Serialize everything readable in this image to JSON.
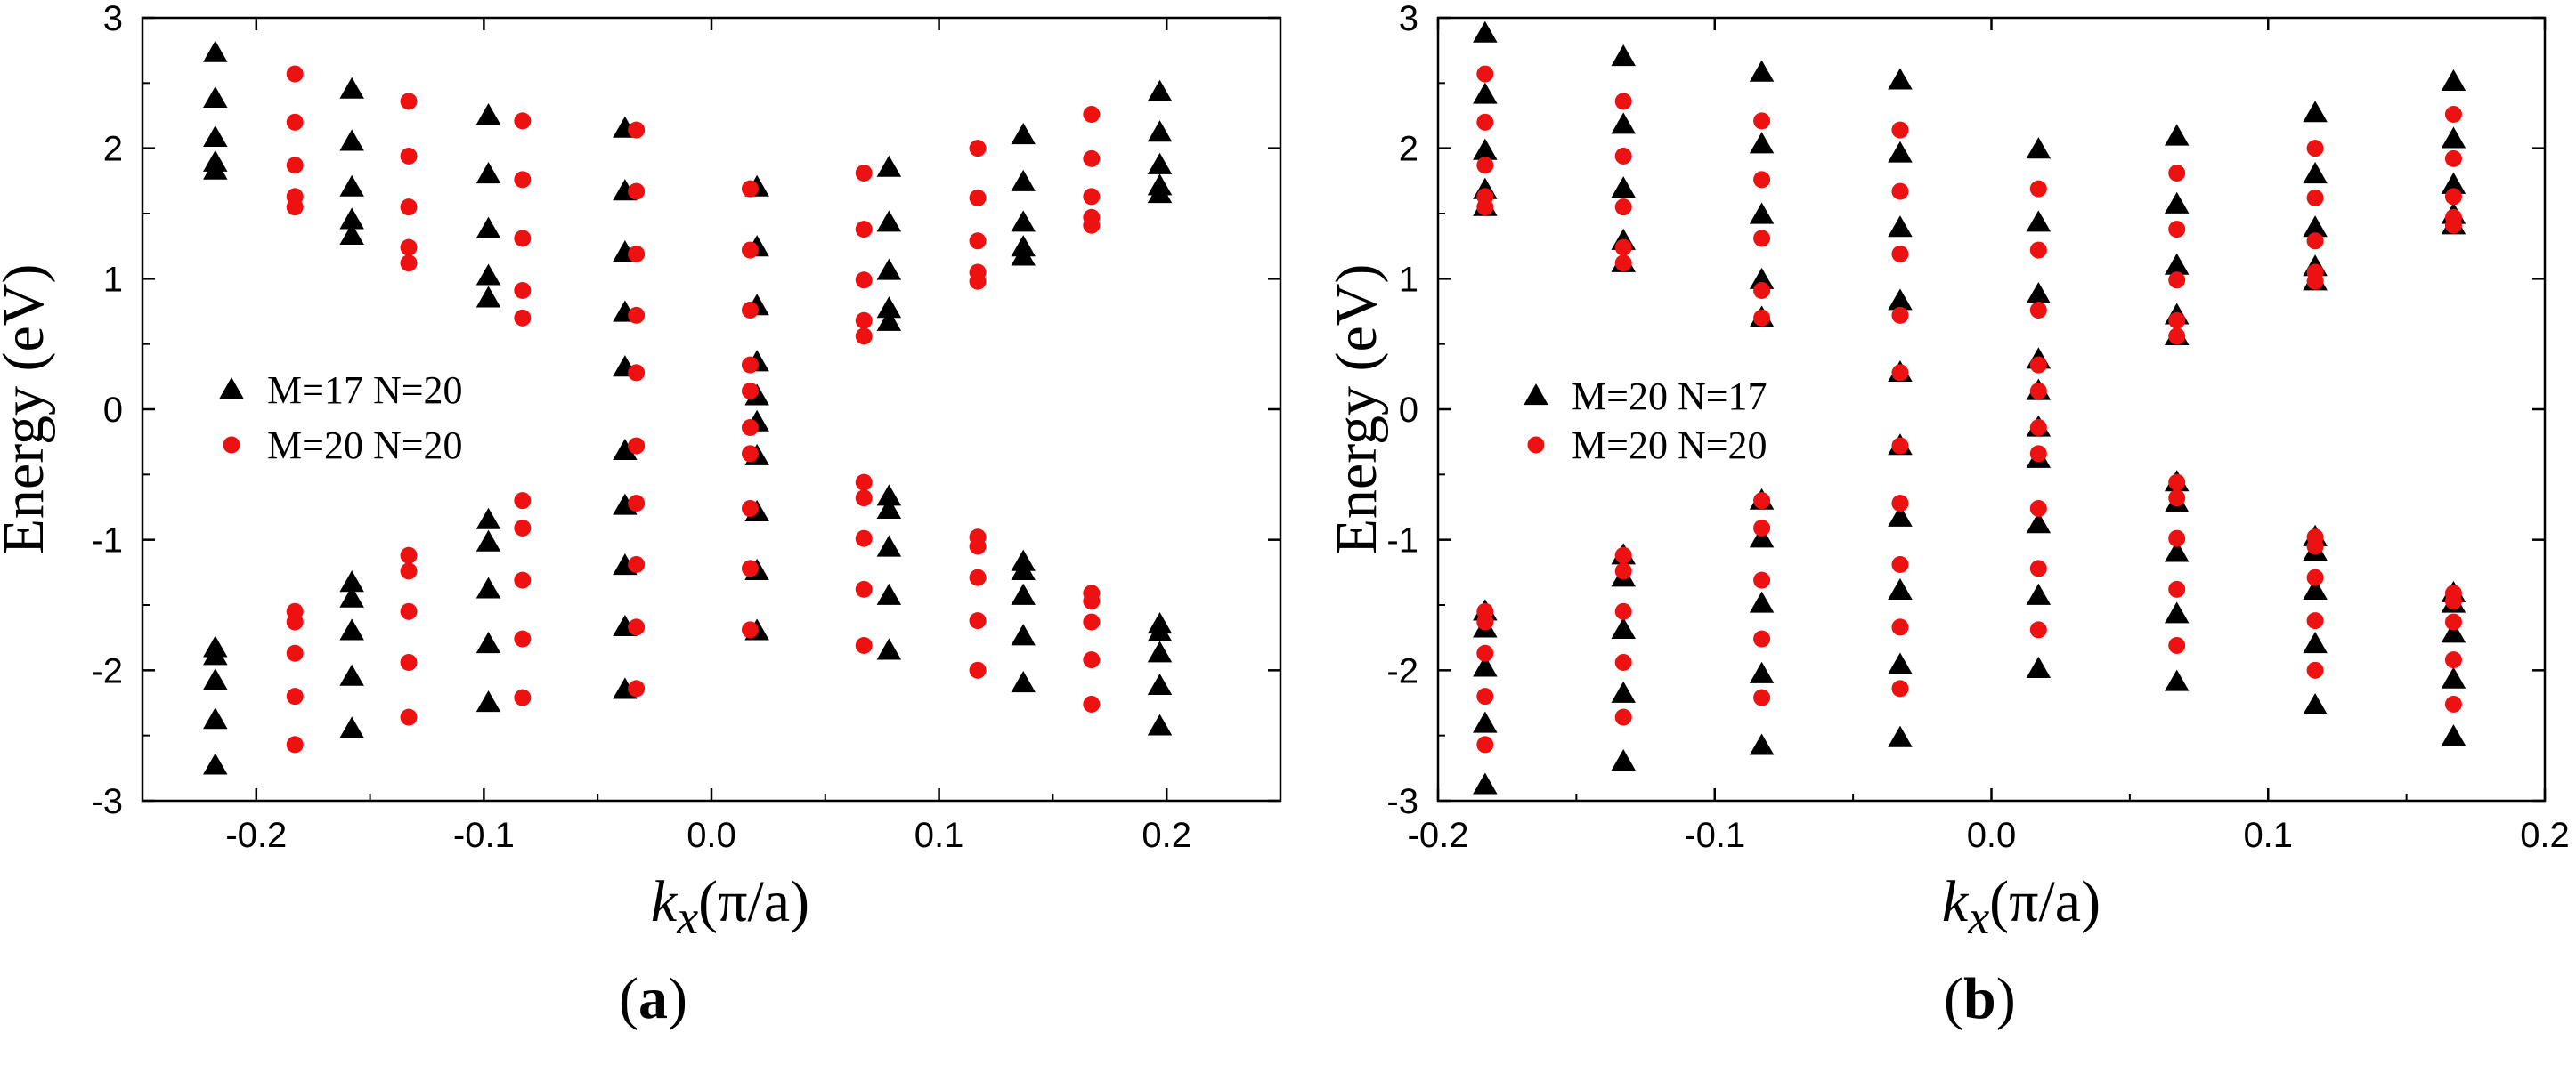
{
  "colors": {
    "series_black": "#000000",
    "series_red": "#ee1111",
    "axis": "#000000"
  },
  "chart_data": [
    {
      "panel": "a",
      "type": "scatter",
      "caption": "a",
      "xlabel_italic": "k",
      "xlabel_sub": "x",
      "xlabel_unit": "(π/a)",
      "ylabel": "Energy (eV)",
      "xlim": [
        -0.25,
        0.25
      ],
      "ylim": [
        -3,
        3
      ],
      "xticks": [
        -0.2,
        -0.1,
        0.0,
        0.1,
        0.2
      ],
      "xtick_labels": [
        "-0.2",
        "-0.1",
        "0.0",
        "0.1",
        "0.2"
      ],
      "yticks": [
        -3,
        -2,
        -1,
        0,
        1,
        2,
        3
      ],
      "ytick_labels": [
        "-3",
        "-2",
        "-1",
        "0",
        "1",
        "2",
        "3"
      ],
      "legend_position": "center-left",
      "series": [
        {
          "name": "M=17 N=20",
          "marker": "triangle",
          "color": "#000000",
          "columns": [
            {
              "x": -0.218,
              "y": [
                2.73,
                2.38,
                2.08,
                1.89,
                1.83,
                -1.83,
                -1.89,
                -2.08,
                -2.38,
                -2.73
              ]
            },
            {
              "x": -0.158,
              "y": [
                2.45,
                2.05,
                1.7,
                1.45,
                1.33,
                -1.33,
                -1.45,
                -1.7,
                -2.05,
                -2.45
              ]
            },
            {
              "x": -0.098,
              "y": [
                2.25,
                1.8,
                1.38,
                1.02,
                0.85,
                -0.85,
                -1.02,
                -1.38,
                -1.8,
                -2.25
              ]
            },
            {
              "x": -0.038,
              "y": [
                2.15,
                1.67,
                1.2,
                0.74,
                0.32,
                -0.32,
                -0.74,
                -1.2,
                -1.67,
                -2.15
              ]
            },
            {
              "x": 0.02,
              "y": [
                1.7,
                1.24,
                0.79,
                0.36,
                0.1,
                -0.1,
                -0.36,
                -0.79,
                -1.24,
                -1.7
              ]
            },
            {
              "x": 0.078,
              "y": [
                1.85,
                1.43,
                1.06,
                0.77,
                0.67,
                -0.67,
                -0.77,
                -1.06,
                -1.43,
                -1.85
              ]
            },
            {
              "x": 0.137,
              "y": [
                2.1,
                1.74,
                1.43,
                1.24,
                1.17,
                -1.17,
                -1.24,
                -1.43,
                -1.74,
                -2.1
              ]
            },
            {
              "x": 0.197,
              "y": [
                2.43,
                2.12,
                1.87,
                1.71,
                1.65,
                -1.65,
                -1.71,
                -1.87,
                -2.12,
                -2.43
              ]
            }
          ]
        },
        {
          "name": "M=20 N=20",
          "marker": "circle",
          "color": "#ee1111",
          "columns": [
            {
              "x": -0.183,
              "y": [
                2.57,
                2.2,
                1.87,
                1.63,
                1.55,
                -1.55,
                -1.63,
                -1.87,
                -2.2,
                -2.57
              ]
            },
            {
              "x": -0.133,
              "y": [
                2.36,
                1.94,
                1.55,
                1.24,
                1.12,
                -1.12,
                -1.24,
                -1.55,
                -1.94,
                -2.36
              ]
            },
            {
              "x": -0.083,
              "y": [
                2.21,
                1.76,
                1.31,
                0.91,
                0.7,
                -0.7,
                -0.91,
                -1.31,
                -1.76,
                -2.21
              ]
            },
            {
              "x": -0.033,
              "y": [
                2.14,
                1.67,
                1.19,
                0.72,
                0.28,
                -0.28,
                -0.72,
                -1.19,
                -1.67,
                -2.14
              ]
            },
            {
              "x": 0.017,
              "y": [
                1.69,
                1.22,
                0.76,
                0.34,
                0.14,
                -0.14,
                -0.34,
                -0.76,
                -1.22,
                -1.69
              ]
            },
            {
              "x": 0.067,
              "y": [
                1.81,
                1.38,
                0.99,
                0.68,
                0.56,
                -0.56,
                -0.68,
                -0.99,
                -1.38,
                -1.81
              ]
            },
            {
              "x": 0.117,
              "y": [
                2.0,
                1.62,
                1.29,
                1.05,
                0.98,
                -0.98,
                -1.05,
                -1.29,
                -1.62,
                -2.0
              ]
            },
            {
              "x": 0.167,
              "y": [
                2.26,
                1.92,
                1.63,
                1.47,
                1.41,
                -1.41,
                -1.47,
                -1.63,
                -1.92,
                -2.26
              ]
            }
          ]
        }
      ]
    },
    {
      "panel": "b",
      "type": "scatter",
      "caption": "b",
      "xlabel_italic": "k",
      "xlabel_sub": "x",
      "xlabel_unit": "(π/a)",
      "ylabel": "Energy (eV)",
      "xlim": [
        -0.2,
        0.2
      ],
      "ylim": [
        -3,
        3
      ],
      "xticks": [
        -0.2,
        -0.1,
        0.0,
        0.1,
        0.2
      ],
      "xtick_labels": [
        "-0.2",
        "-0.1",
        "0.0",
        "0.1",
        "0.2"
      ],
      "yticks": [
        -3,
        -2,
        -1,
        0,
        1,
        2,
        3
      ],
      "ytick_labels": [
        "-3",
        "-2",
        "-1",
        "0",
        "1",
        "2",
        "3"
      ],
      "legend_position": "center-left",
      "series": [
        {
          "name": "M=20 N=17",
          "marker": "triangle",
          "color": "#000000",
          "columns": [
            {
              "x": -0.183,
              "y": [
                2.88,
                2.41,
                1.98,
                1.68,
                1.55,
                -1.55,
                -1.68,
                -1.98,
                -2.41,
                -2.88
              ]
            },
            {
              "x": -0.133,
              "y": [
                2.7,
                2.18,
                1.69,
                1.29,
                1.12,
                -1.12,
                -1.29,
                -1.69,
                -2.18,
                -2.7
              ]
            },
            {
              "x": -0.083,
              "y": [
                2.58,
                2.03,
                1.49,
                0.99,
                0.7,
                -0.7,
                -0.99,
                -1.49,
                -2.03,
                -2.58
              ]
            },
            {
              "x": -0.033,
              "y": [
                2.52,
                1.96,
                1.39,
                0.83,
                0.28,
                -0.28,
                -0.83,
                -1.39,
                -1.96,
                -2.52
              ]
            },
            {
              "x": 0.017,
              "y": [
                1.99,
                1.43,
                0.88,
                0.38,
                0.14,
                -0.14,
                -0.38,
                -0.88,
                -1.43,
                -1.99
              ]
            },
            {
              "x": 0.067,
              "y": [
                2.09,
                1.57,
                1.1,
                0.72,
                0.56,
                -0.56,
                -0.72,
                -1.1,
                -1.57,
                -2.09
              ]
            },
            {
              "x": 0.117,
              "y": [
                2.27,
                1.8,
                1.39,
                1.09,
                0.98,
                -0.98,
                -1.09,
                -1.39,
                -1.8,
                -2.27
              ]
            },
            {
              "x": 0.167,
              "y": [
                2.51,
                2.07,
                1.72,
                1.49,
                1.41,
                -1.41,
                -1.49,
                -1.72,
                -2.07,
                -2.51
              ]
            }
          ]
        },
        {
          "name": "M=20 N=20",
          "marker": "circle",
          "color": "#ee1111",
          "columns": [
            {
              "x": -0.183,
              "y": [
                2.57,
                2.2,
                1.87,
                1.63,
                1.55,
                -1.55,
                -1.63,
                -1.87,
                -2.2,
                -2.57
              ]
            },
            {
              "x": -0.133,
              "y": [
                2.36,
                1.94,
                1.55,
                1.24,
                1.12,
                -1.12,
                -1.24,
                -1.55,
                -1.94,
                -2.36
              ]
            },
            {
              "x": -0.083,
              "y": [
                2.21,
                1.76,
                1.31,
                0.91,
                0.7,
                -0.7,
                -0.91,
                -1.31,
                -1.76,
                -2.21
              ]
            },
            {
              "x": -0.033,
              "y": [
                2.14,
                1.67,
                1.19,
                0.72,
                0.28,
                -0.28,
                -0.72,
                -1.19,
                -1.67,
                -2.14
              ]
            },
            {
              "x": 0.017,
              "y": [
                1.69,
                1.22,
                0.76,
                0.34,
                0.14,
                -0.14,
                -0.34,
                -0.76,
                -1.22,
                -1.69
              ]
            },
            {
              "x": 0.067,
              "y": [
                1.81,
                1.38,
                0.99,
                0.68,
                0.56,
                -0.56,
                -0.68,
                -0.99,
                -1.38,
                -1.81
              ]
            },
            {
              "x": 0.117,
              "y": [
                2.0,
                1.62,
                1.29,
                1.05,
                0.98,
                -0.98,
                -1.05,
                -1.29,
                -1.62,
                -2.0
              ]
            },
            {
              "x": 0.167,
              "y": [
                2.26,
                1.92,
                1.63,
                1.47,
                1.41,
                -1.41,
                -1.47,
                -1.63,
                -1.92,
                -2.26
              ]
            }
          ]
        }
      ]
    }
  ]
}
